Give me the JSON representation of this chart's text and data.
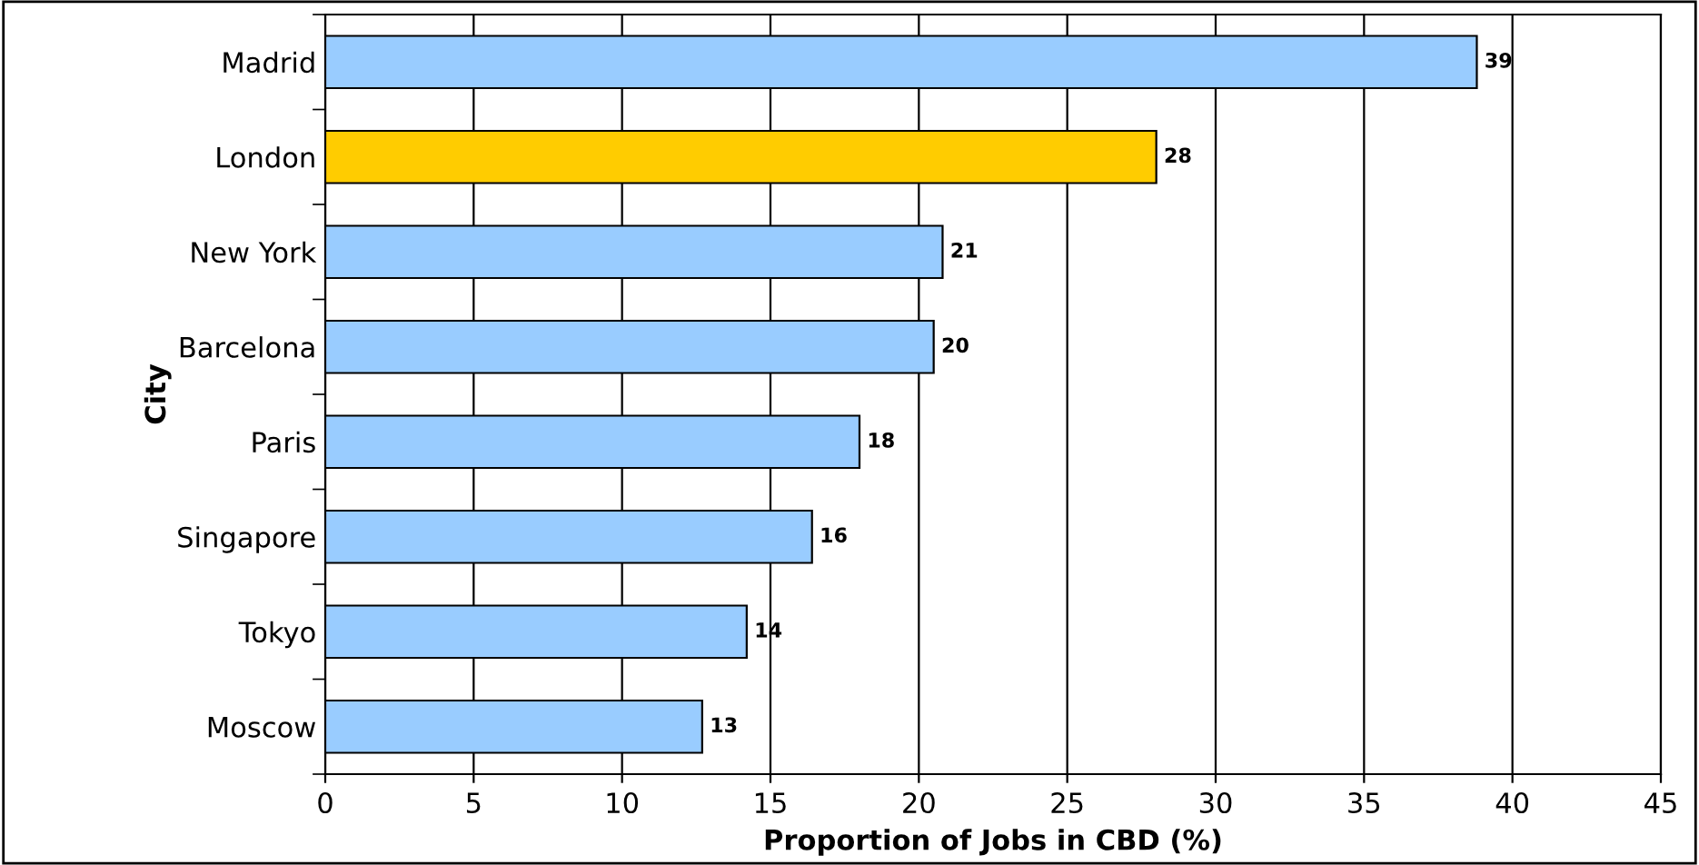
{
  "chart_data": {
    "type": "bar",
    "orientation": "horizontal",
    "xlabel": "Proportion of Jobs in CBD (%)",
    "ylabel": "City",
    "categories": [
      "Madrid",
      "London",
      "New York",
      "Barcelona",
      "Paris",
      "Singapore",
      "Tokyo",
      "Moscow"
    ],
    "values": [
      38.8,
      28.0,
      20.8,
      20.5,
      18.0,
      16.4,
      14.2,
      12.7
    ],
    "value_labels": [
      "39",
      "28",
      "21",
      "20",
      "18",
      "16",
      "14",
      "13"
    ],
    "colors": [
      "#99ccff",
      "#ffcc00",
      "#99ccff",
      "#99ccff",
      "#99ccff",
      "#99ccff",
      "#99ccff",
      "#99ccff"
    ],
    "xlim": [
      0,
      45
    ],
    "xticks": [
      0,
      5,
      10,
      15,
      20,
      25,
      30,
      35,
      40,
      45
    ],
    "grid": "x",
    "legend": false
  }
}
